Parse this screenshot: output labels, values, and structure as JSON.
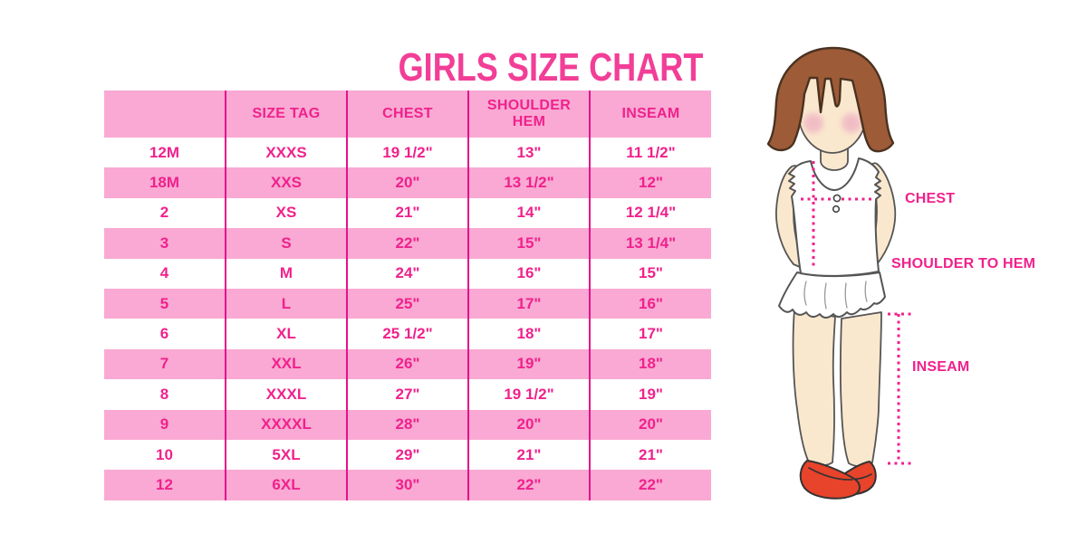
{
  "page": {
    "title": "GIRLS SIZE CHART"
  },
  "colors": {
    "pink_light": "#F9A9D3",
    "pink_text": "#F0218C",
    "pink_line": "#E5128A",
    "pink_title": "#F23E97",
    "hair": "#9E5B38",
    "skin": "#FAE8CE",
    "blush": "#EFB3C3",
    "shoe": "#E8432B"
  },
  "chart_data": {
    "type": "table",
    "title": "GIRLS SIZE CHART",
    "columns": [
      "",
      "SIZE TAG",
      "CHEST",
      "SHOULDER HEM",
      "INSEAM"
    ],
    "rows": [
      [
        "12M",
        "XXXS",
        "19 1/2\"",
        "13\"",
        "11 1/2\""
      ],
      [
        "18M",
        "XXS",
        "20\"",
        "13 1/2\"",
        "12\""
      ],
      [
        "2",
        "XS",
        "21\"",
        "14\"",
        "12 1/4\""
      ],
      [
        "3",
        "S",
        "22\"",
        "15\"",
        "13 1/4\""
      ],
      [
        "4",
        "M",
        "24\"",
        "16\"",
        "15\""
      ],
      [
        "5",
        "L",
        "25\"",
        "17\"",
        "16\""
      ],
      [
        "6",
        "XL",
        "25 1/2\"",
        "18\"",
        "17\""
      ],
      [
        "7",
        "XXL",
        "26\"",
        "19\"",
        "18\""
      ],
      [
        "8",
        "XXXL",
        "27\"",
        "19 1/2\"",
        "19\""
      ],
      [
        "9",
        "XXXXL",
        "28\"",
        "20\"",
        "20\""
      ],
      [
        "10",
        "5XL",
        "29\"",
        "21\"",
        "21\""
      ],
      [
        "12",
        "6XL",
        "30\"",
        "22\"",
        "22\""
      ]
    ],
    "layout": {
      "header_background": "#F9A9D3",
      "row_stripes": [
        "#FFFFFF",
        "#F9A9D3"
      ],
      "gridlines": "vertical-only"
    }
  },
  "diagram": {
    "labels": {
      "chest": "CHEST",
      "shoulder_to_hem": "SHOULDER TO HEM",
      "inseam": "INSEAM"
    }
  }
}
